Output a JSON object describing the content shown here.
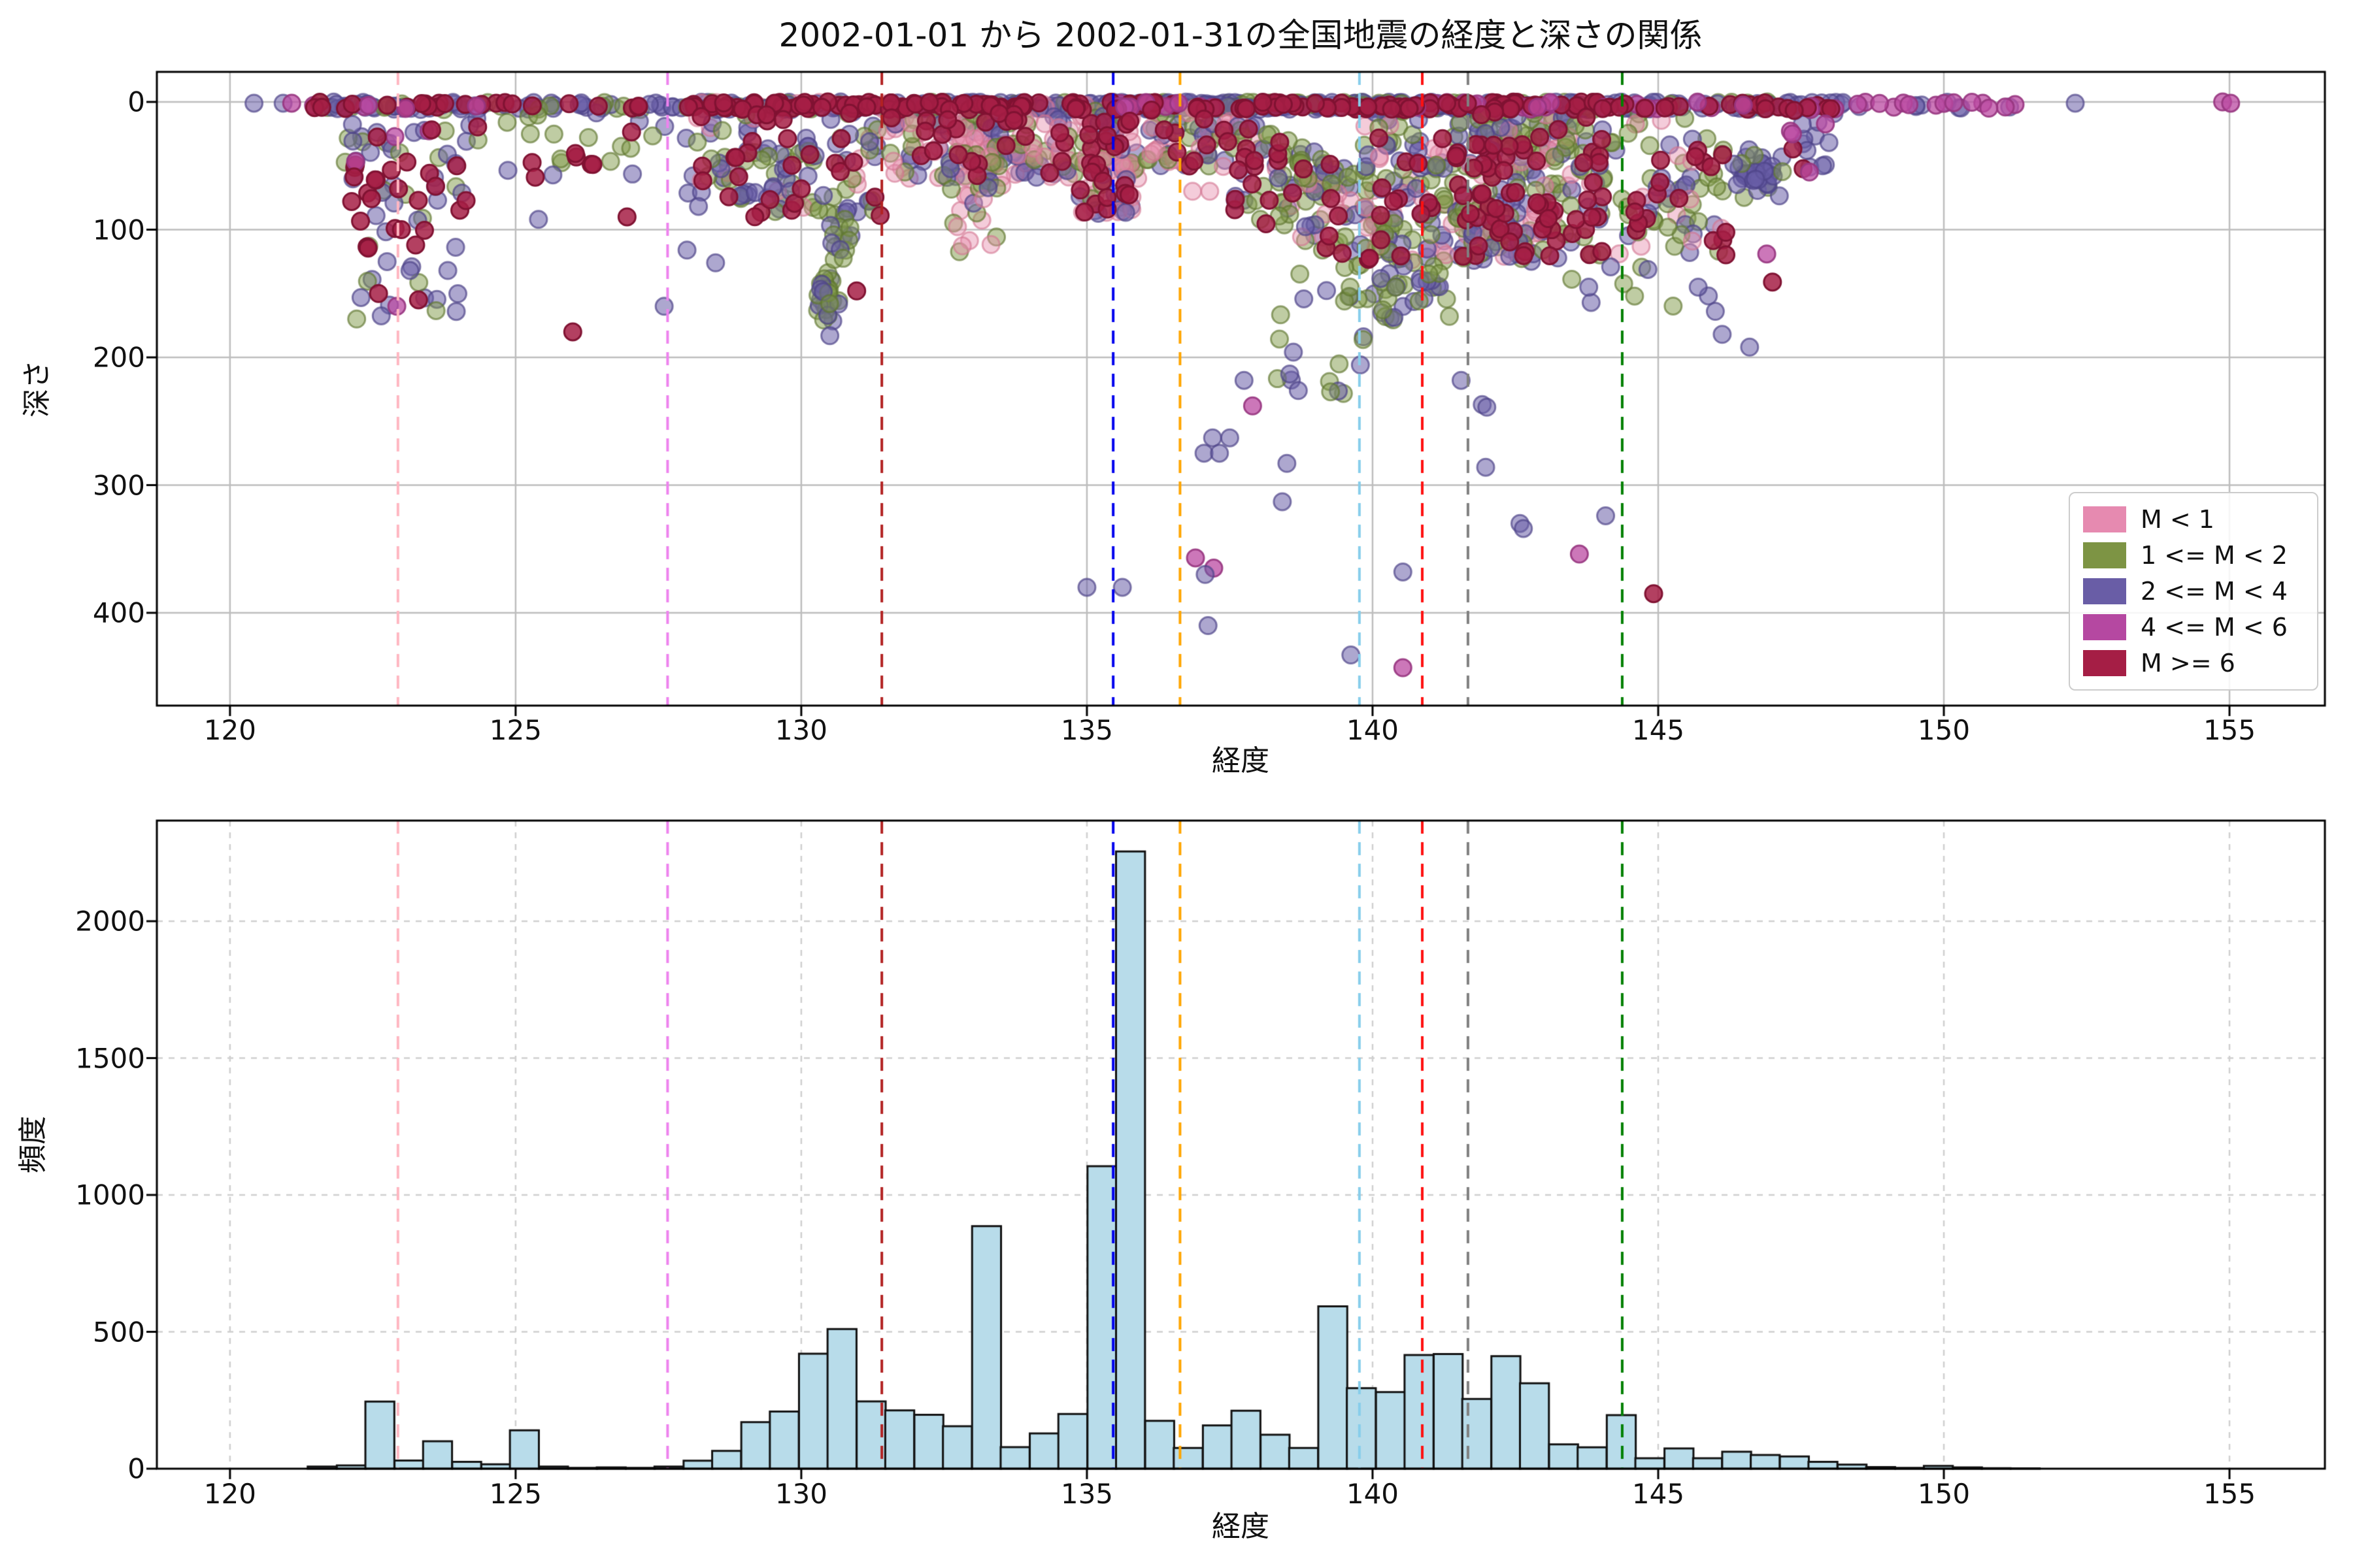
{
  "title": "2002-01-01 から 2002-01-31の全国地震の経度と深さの関係",
  "scatter": {
    "xlabel": "経度",
    "ylabel": "深さ",
    "xticks": [
      120,
      125,
      130,
      135,
      140,
      145,
      150,
      155
    ],
    "yticks": [
      0,
      100,
      200,
      300,
      400
    ],
    "legend": [
      {
        "label": "M < 1",
        "color": "#e68ab0"
      },
      {
        "label": "1 <= M < 2",
        "color": "#7d9444"
      },
      {
        "label": "2 <= M < 4",
        "color": "#695da6"
      },
      {
        "label": "4 <= M < 6",
        "color": "#b548a1"
      },
      {
        "label": "M >= 6",
        "color": "#a51e45"
      }
    ]
  },
  "hist": {
    "xlabel": "経度",
    "ylabel": "頻度",
    "xticks": [
      120,
      125,
      130,
      135,
      140,
      145,
      150,
      155
    ],
    "yticks": [
      0,
      500,
      1000,
      1500,
      2000
    ]
  },
  "chart_data": [
    {
      "type": "scatter",
      "title": "2002-01-01 から 2002-01-31の全国地震の経度と深さの関係",
      "xlabel": "経度",
      "ylabel": "深さ",
      "xlim": [
        118.72,
        156.67
      ],
      "ylim_depth": [
        -23,
        472
      ],
      "grid": "solid",
      "classes": {
        "pk": {
          "label": "M < 1",
          "color": "#e78fac",
          "edge": "#d2738f",
          "alpha": 0.45
        },
        "ol": {
          "label": "1 <= M < 2",
          "color": "#7f9a48",
          "edge": "#5f762f",
          "alpha": 0.5
        },
        "pu": {
          "label": "2 <= M < 4",
          "color": "#6a5fa8",
          "edge": "#4e4589",
          "alpha": 0.55
        },
        "ma": {
          "label": "4 <= M < 6",
          "color": "#bb4aa2",
          "edge": "#97357f",
          "alpha": 0.75
        },
        "cr": {
          "label": "M >= 6",
          "color": "#a61e45",
          "edge": "#801232",
          "alpha": 0.85
        }
      },
      "vlines": [
        {
          "x": 122.94,
          "color": "#ffb6c1"
        },
        {
          "x": 127.66,
          "color": "#ee82ee"
        },
        {
          "x": 131.41,
          "color": "#b22222"
        },
        {
          "x": 135.46,
          "color": "#0000ee"
        },
        {
          "x": 136.63,
          "color": "#ffa500"
        },
        {
          "x": 139.77,
          "color": "#87ceeb"
        },
        {
          "x": 140.87,
          "color": "#ff1111"
        },
        {
          "x": 141.67,
          "color": "#808080"
        },
        {
          "x": 144.37,
          "color": "#008000"
        }
      ],
      "clusters": [
        {
          "x": [
            121.45,
            124.75
          ],
          "depth": [
            0,
            6
          ],
          "n": 65,
          "mix": {
            "pu": 0.4,
            "cr": 0.35,
            "ma": 0.12,
            "ol": 0.13
          }
        },
        {
          "x": [
            124.75,
            127.95
          ],
          "depth": [
            0,
            6
          ],
          "n": 38,
          "mix": {
            "pu": 0.6,
            "cr": 0.2,
            "ol": 0.2
          }
        },
        {
          "x": [
            127.95,
            131.5
          ],
          "depth": [
            0,
            6
          ],
          "n": 115,
          "mix": {
            "pu": 0.42,
            "cr": 0.3,
            "ol": 0.18,
            "pk": 0.1
          }
        },
        {
          "x": [
            131.5,
            135.3
          ],
          "depth": [
            0,
            6
          ],
          "n": 135,
          "mix": {
            "pu": 0.5,
            "cr": 0.25,
            "ol": 0.15,
            "pk": 0.1
          }
        },
        {
          "x": [
            135.3,
            137.25
          ],
          "depth": [
            0,
            6
          ],
          "n": 95,
          "mix": {
            "pu": 0.55,
            "cr": 0.2,
            "ol": 0.15,
            "ma": 0.1
          }
        },
        {
          "x": [
            137.25,
            140.5
          ],
          "depth": [
            0,
            6
          ],
          "n": 115,
          "mix": {
            "pu": 0.5,
            "cr": 0.27,
            "ol": 0.23
          }
        },
        {
          "x": [
            140.5,
            144.0
          ],
          "depth": [
            0,
            6
          ],
          "n": 115,
          "mix": {
            "pu": 0.45,
            "cr": 0.3,
            "ol": 0.15,
            "ma": 0.1
          }
        },
        {
          "x": [
            144.0,
            148.25
          ],
          "depth": [
            0,
            6
          ],
          "n": 85,
          "mix": {
            "pu": 0.5,
            "cr": 0.25,
            "ma": 0.15,
            "ol": 0.1
          }
        },
        {
          "x": [
            148.35,
            151.6
          ],
          "depth": [
            0,
            5
          ],
          "n": 22,
          "mix": {
            "pu": 0.5,
            "ma": 0.5
          }
        },
        {
          "x": [
            122.0,
            124.35
          ],
          "depth": [
            10,
            85
          ],
          "n": 55,
          "mix": {
            "pu": 0.4,
            "ol": 0.3,
            "cr": 0.25,
            "ma": 0.05
          }
        },
        {
          "x": [
            122.2,
            124.0
          ],
          "depth": [
            85,
            170
          ],
          "n": 26,
          "mix": {
            "pu": 0.5,
            "ol": 0.3,
            "cr": 0.2
          }
        },
        {
          "x": [
            124.5,
            128.0
          ],
          "depth": [
            8,
            60
          ],
          "n": 26,
          "mix": {
            "pu": 0.5,
            "ol": 0.35,
            "cr": 0.15
          }
        },
        {
          "x": [
            128.0,
            131.5
          ],
          "depth": [
            8,
            90
          ],
          "n": 135,
          "mix": {
            "pu": 0.38,
            "ol": 0.32,
            "cr": 0.22,
            "pk": 0.08
          }
        },
        {
          "x": [
            130.18,
            130.68
          ],
          "depth": [
            122,
            185
          ],
          "n": 30,
          "soft": true,
          "mix": {
            "ol": 0.6,
            "pu": 0.4
          }
        },
        {
          "x": [
            130.4,
            130.95
          ],
          "depth": [
            88,
            130
          ],
          "n": 15,
          "mix": {
            "ol": 0.8,
            "pu": 0.2
          }
        },
        {
          "x": [
            131.5,
            135.9
          ],
          "depth": [
            6,
            60
          ],
          "n": 210,
          "mix": {
            "pk": 0.45,
            "ol": 0.2,
            "cr": 0.15,
            "pu": 0.2
          }
        },
        {
          "x": [
            132.6,
            133.7
          ],
          "depth": [
            60,
            120
          ],
          "n": 13,
          "mix": {
            "pk": 0.7,
            "ol": 0.3
          }
        },
        {
          "x": [
            133.0,
            133.55
          ],
          "depth": [
            30,
            80
          ],
          "n": 22,
          "mix": {
            "ol": 0.5,
            "pu": 0.3,
            "pk": 0.2
          }
        },
        {
          "x": [
            134.85,
            135.8
          ],
          "depth": [
            8,
            88
          ],
          "n": 75,
          "mix": {
            "pk": 0.3,
            "pu": 0.3,
            "cr": 0.2,
            "ol": 0.2
          }
        },
        {
          "x": [
            136.0,
            137.55
          ],
          "depth": [
            5,
            52
          ],
          "n": 60,
          "mix": {
            "pk": 0.35,
            "ol": 0.3,
            "pu": 0.2,
            "cr": 0.15
          }
        },
        {
          "x": [
            137.55,
            139.85
          ],
          "depth": [
            10,
            85
          ],
          "n": 120,
          "slope": 20,
          "mix": {
            "ol": 0.5,
            "pu": 0.3,
            "pk": 0.1,
            "cr": 0.1
          }
        },
        {
          "x": [
            138.3,
            139.85
          ],
          "depth": [
            130,
            230
          ],
          "n": 16,
          "mix": {
            "pu": 0.55,
            "ol": 0.45
          }
        },
        {
          "x": [
            139.85,
            143.5
          ],
          "depth": [
            5,
            125
          ],
          "n": 340,
          "mix": {
            "ol": 0.3,
            "pu": 0.3,
            "pk": 0.18,
            "cr": 0.22
          }
        },
        {
          "x": [
            139.5,
            141.35
          ],
          "depth": [
            125,
            172
          ],
          "n": 42,
          "mix": {
            "pu": 0.5,
            "ol": 0.5
          }
        },
        {
          "x": [
            141.55,
            142.45
          ],
          "depth": [
            28,
            122
          ],
          "n": 26,
          "mix": {
            "cr": 0.75,
            "pu": 0.25
          }
        },
        {
          "x": [
            143.5,
            146.2
          ],
          "depth": [
            8,
            120
          ],
          "n": 115,
          "mix": {
            "cr": 0.28,
            "ol": 0.3,
            "pu": 0.32,
            "pk": 0.1
          }
        },
        {
          "x": [
            143.1,
            146.1
          ],
          "depth": [
            120,
            185
          ],
          "n": 10,
          "mix": {
            "pu": 0.7,
            "ol": 0.3
          }
        },
        {
          "x": [
            146.25,
            147.3
          ],
          "depth": [
            36,
            76
          ],
          "n": 42,
          "soft": true,
          "mix": {
            "pu": 0.85,
            "ol": 0.15
          }
        },
        {
          "x": [
            147.3,
            148.3
          ],
          "depth": [
            5,
            55
          ],
          "n": 18,
          "mix": {
            "pu": 0.5,
            "ma": 0.3,
            "cr": 0.2
          }
        }
      ],
      "singles": [
        [
          120.42,
          1,
          "pu"
        ],
        [
          120.93,
          1,
          "pu"
        ],
        [
          121.08,
          1,
          "ma"
        ],
        [
          122.92,
          160,
          "ma"
        ],
        [
          122.6,
          150,
          "cr"
        ],
        [
          123.0,
          100,
          "cr"
        ],
        [
          123.25,
          112,
          "cr"
        ],
        [
          122.95,
          68,
          "cr"
        ],
        [
          123.6,
          66,
          "cr"
        ],
        [
          123.15,
          132,
          "pu"
        ],
        [
          122.75,
          125,
          "pu"
        ],
        [
          125.4,
          92,
          "pu"
        ],
        [
          126.0,
          180,
          "cr"
        ],
        [
          126.95,
          90,
          "cr"
        ],
        [
          127.6,
          160,
          "pu"
        ],
        [
          128.0,
          116,
          "pu"
        ],
        [
          128.5,
          126,
          "pu"
        ],
        [
          130.0,
          68,
          "cr"
        ],
        [
          130.97,
          148,
          "cr"
        ],
        [
          130.5,
          183,
          "pu"
        ],
        [
          135.0,
          380,
          "pu"
        ],
        [
          135.62,
          380,
          "pu"
        ],
        [
          135.28,
          62,
          "cr"
        ],
        [
          136.85,
          70,
          "pk"
        ],
        [
          137.15,
          70,
          "pk"
        ],
        [
          136.9,
          357,
          "ma"
        ],
        [
          137.22,
          365,
          "ma"
        ],
        [
          137.07,
          370,
          "pu"
        ],
        [
          137.12,
          410,
          "pu"
        ],
        [
          137.2,
          263,
          "pu"
        ],
        [
          137.5,
          263,
          "pu"
        ],
        [
          137.05,
          275,
          "pu"
        ],
        [
          137.32,
          275,
          "pu"
        ],
        [
          137.75,
          218,
          "pu"
        ],
        [
          137.9,
          238,
          "ma"
        ],
        [
          138.55,
          213,
          "pu"
        ],
        [
          138.7,
          226,
          "pu"
        ],
        [
          138.5,
          283,
          "pu"
        ],
        [
          138.42,
          313,
          "pu"
        ],
        [
          139.62,
          433,
          "pu"
        ],
        [
          140.53,
          368,
          "pu"
        ],
        [
          140.53,
          443,
          "ma"
        ],
        [
          141.55,
          218,
          "pu"
        ],
        [
          141.92,
          237,
          "pu"
        ],
        [
          142.0,
          239,
          "pu"
        ],
        [
          141.98,
          286,
          "pu"
        ],
        [
          142.58,
          330,
          "pu"
        ],
        [
          142.64,
          334,
          "pu"
        ],
        [
          144.08,
          324,
          "pu"
        ],
        [
          143.62,
          354,
          "ma"
        ],
        [
          144.92,
          385,
          "cr"
        ],
        [
          145.7,
          145,
          "pu"
        ],
        [
          146.0,
          164,
          "pu"
        ],
        [
          146.12,
          182,
          "pu"
        ],
        [
          146.6,
          192,
          "pu"
        ],
        [
          147.0,
          141,
          "cr"
        ],
        [
          146.9,
          119,
          "ma"
        ],
        [
          147.35,
          25,
          "ma"
        ],
        [
          152.3,
          1,
          "pu"
        ],
        [
          154.88,
          0,
          "ma"
        ],
        [
          155.02,
          1,
          "ma"
        ]
      ]
    },
    {
      "type": "bar",
      "xlabel": "経度",
      "ylabel": "頻度",
      "xlim": [
        118.72,
        156.67
      ],
      "ylim": [
        0,
        2367
      ],
      "grid": "dashed",
      "bar_color": "#b8dcea",
      "bar_edge": "#111111",
      "bin_width": 0.507,
      "bins": [
        [
          121.36,
          8
        ],
        [
          121.87,
          12
        ],
        [
          122.37,
          245
        ],
        [
          122.88,
          30
        ],
        [
          123.38,
          100
        ],
        [
          123.89,
          25
        ],
        [
          124.4,
          16
        ],
        [
          124.9,
          140
        ],
        [
          125.41,
          8
        ],
        [
          125.92,
          3
        ],
        [
          126.42,
          5
        ],
        [
          126.93,
          3
        ],
        [
          127.43,
          8
        ],
        [
          127.94,
          29
        ],
        [
          128.44,
          65
        ],
        [
          128.95,
          170
        ],
        [
          129.45,
          209
        ],
        [
          129.96,
          420
        ],
        [
          130.46,
          510
        ],
        [
          130.97,
          246
        ],
        [
          131.47,
          213
        ],
        [
          131.98,
          197
        ],
        [
          132.48,
          155
        ],
        [
          132.99,
          886
        ],
        [
          133.49,
          79
        ],
        [
          134.0,
          129
        ],
        [
          134.5,
          200
        ],
        [
          135.01,
          1105
        ],
        [
          135.51,
          2255
        ],
        [
          136.02,
          175
        ],
        [
          136.52,
          76
        ],
        [
          137.03,
          158
        ],
        [
          137.53,
          212
        ],
        [
          138.04,
          124
        ],
        [
          138.54,
          76
        ],
        [
          139.05,
          593
        ],
        [
          139.55,
          294
        ],
        [
          140.06,
          280
        ],
        [
          140.56,
          415
        ],
        [
          141.07,
          419
        ],
        [
          141.57,
          255
        ],
        [
          142.08,
          411
        ],
        [
          142.58,
          312
        ],
        [
          143.09,
          89
        ],
        [
          143.59,
          78
        ],
        [
          144.1,
          196
        ],
        [
          144.6,
          38
        ],
        [
          145.11,
          74
        ],
        [
          145.61,
          38
        ],
        [
          146.12,
          62
        ],
        [
          146.62,
          50
        ],
        [
          147.13,
          45
        ],
        [
          147.63,
          25
        ],
        [
          148.14,
          15
        ],
        [
          148.64,
          6
        ],
        [
          149.15,
          3
        ],
        [
          149.65,
          10
        ],
        [
          150.16,
          5
        ],
        [
          150.66,
          2
        ],
        [
          151.17,
          1
        ]
      ]
    }
  ]
}
